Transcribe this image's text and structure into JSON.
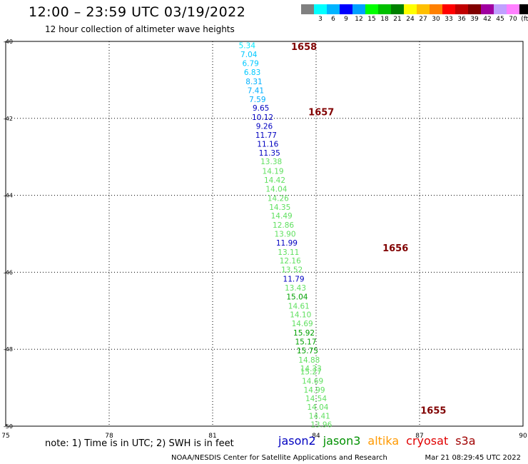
{
  "title": "12:00 – 23:59 UTC 03/19/2022",
  "subtitle": "12 hour collection of altimeter wave heights",
  "legend": {
    "colors": [
      "#808080",
      "#00ffff",
      "#00b4ff",
      "#0000ff",
      "#00a0ff",
      "#00ff00",
      "#00c000",
      "#008000",
      "#ffff00",
      "#ffc000",
      "#ff8000",
      "#ff0000",
      "#c00000",
      "#800000",
      "#a000a0",
      "#c0a0ff",
      "#ff80ff",
      "#000000"
    ],
    "labels": [
      "",
      "3",
      "6",
      "9",
      "12",
      "15",
      "18",
      "21",
      "24",
      "27",
      "30",
      "33",
      "36",
      "39",
      "42",
      "45",
      "70",
      "(ft)"
    ]
  },
  "note": "note:  1) Time is in UTC;  2) SWH is in feet",
  "satellites": [
    {
      "name": "jason2",
      "color": "#0000c0"
    },
    {
      "name": "jason3",
      "color": "#009000"
    },
    {
      "name": "altika",
      "color": "#ff9900"
    },
    {
      "name": "cryosat",
      "color": "#e00000"
    },
    {
      "name": "s3a",
      "color": "#a00000"
    }
  ],
  "footer_left": "NOAA/NESDIS Center for Satellite Applications and Research",
  "footer_right": "Mar 21 08:29:45 UTC 2022",
  "chart_data": {
    "type": "scatter",
    "xlim": [
      75,
      90
    ],
    "ylim": [
      -50,
      -40
    ],
    "x_ticks": [
      75,
      78,
      81,
      84,
      87,
      90
    ],
    "x_tick_labels": [
      "75",
      "78",
      "81",
      "84",
      "87",
      "90"
    ],
    "y_ticks": [
      -40,
      -42,
      -44,
      -46,
      -48,
      -50
    ],
    "y_tick_labels": [
      "-40",
      "-42",
      "-44",
      "-46",
      "-48",
      "-50"
    ],
    "grid": true,
    "time_labels": [
      {
        "text": "1658",
        "x": 83.65,
        "y": -40.15
      },
      {
        "text": "1657",
        "x": 84.15,
        "y": -41.85
      },
      {
        "text": "1656",
        "x": 86.3,
        "y": -45.38
      },
      {
        "text": "1655",
        "x": 87.4,
        "y": -49.6
      }
    ],
    "points": [
      {
        "x": 82.0,
        "y": -40.1,
        "v": "5.34",
        "c": "#00e8ff"
      },
      {
        "x": 82.05,
        "y": -40.33,
        "v": "7.04",
        "c": "#00c8ff"
      },
      {
        "x": 82.1,
        "y": -40.57,
        "v": "6.79",
        "c": "#00c8ff"
      },
      {
        "x": 82.15,
        "y": -40.8,
        "v": "6.83",
        "c": "#00c8ff"
      },
      {
        "x": 82.2,
        "y": -41.04,
        "v": "8.31",
        "c": "#00b0ff"
      },
      {
        "x": 82.25,
        "y": -41.27,
        "v": "7.41",
        "c": "#00b0ff"
      },
      {
        "x": 82.3,
        "y": -41.5,
        "v": "7.59",
        "c": "#00b0ff"
      },
      {
        "x": 82.4,
        "y": -41.73,
        "v": "9.65",
        "c": "#0000c0"
      },
      {
        "x": 82.45,
        "y": -41.97,
        "v": "10.12",
        "c": "#0000c0"
      },
      {
        "x": 82.5,
        "y": -42.2,
        "v": "9.26",
        "c": "#0000c0"
      },
      {
        "x": 82.55,
        "y": -42.43,
        "v": "11.77",
        "c": "#0000c0"
      },
      {
        "x": 82.6,
        "y": -42.66,
        "v": "11.16",
        "c": "#0000c0"
      },
      {
        "x": 82.65,
        "y": -42.89,
        "v": "11.35",
        "c": "#0000c0"
      },
      {
        "x": 82.7,
        "y": -43.12,
        "v": "13.38",
        "c": "#60e060"
      },
      {
        "x": 82.75,
        "y": -43.37,
        "v": "14.19",
        "c": "#60e060"
      },
      {
        "x": 82.8,
        "y": -43.6,
        "v": "14.42",
        "c": "#60e060"
      },
      {
        "x": 82.85,
        "y": -43.83,
        "v": "14.04",
        "c": "#60e060"
      },
      {
        "x": 82.9,
        "y": -44.07,
        "v": "14.26",
        "c": "#60e060"
      },
      {
        "x": 82.95,
        "y": -44.3,
        "v": "14.35",
        "c": "#60e060"
      },
      {
        "x": 83.0,
        "y": -44.53,
        "v": "14.49",
        "c": "#60e060"
      },
      {
        "x": 83.05,
        "y": -44.77,
        "v": "12.86",
        "c": "#60e060"
      },
      {
        "x": 83.1,
        "y": -45.0,
        "v": "13.90",
        "c": "#60e060"
      },
      {
        "x": 83.15,
        "y": -45.23,
        "v": "11.99",
        "c": "#0000c0"
      },
      {
        "x": 83.2,
        "y": -45.47,
        "v": "13.11",
        "c": "#60e060"
      },
      {
        "x": 83.25,
        "y": -45.7,
        "v": "12.16",
        "c": "#60e060"
      },
      {
        "x": 83.3,
        "y": -45.93,
        "v": "13.52",
        "c": "#60e060"
      },
      {
        "x": 83.35,
        "y": -46.17,
        "v": "11.79",
        "c": "#0000c0"
      },
      {
        "x": 83.4,
        "y": -46.4,
        "v": "13.43",
        "c": "#60e060"
      },
      {
        "x": 83.45,
        "y": -46.63,
        "v": "15.04",
        "c": "#00a000"
      },
      {
        "x": 83.5,
        "y": -46.87,
        "v": "14.61",
        "c": "#60e060"
      },
      {
        "x": 83.55,
        "y": -47.1,
        "v": "14.10",
        "c": "#60e060"
      },
      {
        "x": 83.6,
        "y": -47.33,
        "v": "14.69",
        "c": "#60e060"
      },
      {
        "x": 83.65,
        "y": -47.57,
        "v": "15.92",
        "c": "#00a000"
      },
      {
        "x": 83.7,
        "y": -47.8,
        "v": "15.17",
        "c": "#00a000"
      },
      {
        "x": 83.75,
        "y": -48.03,
        "v": "15.75",
        "c": "#00a000"
      },
      {
        "x": 83.8,
        "y": -48.27,
        "v": "14.88",
        "c": "#60e060"
      },
      {
        "x": 83.85,
        "y": -48.5,
        "v": "14.33",
        "c": "#60e060"
      },
      {
        "x": 83.85,
        "y": -48.58,
        "v": "15.27",
        "c": "#60e060"
      },
      {
        "x": 83.9,
        "y": -48.82,
        "v": "14.69",
        "c": "#60e060"
      },
      {
        "x": 83.95,
        "y": -49.05,
        "v": "14.99",
        "c": "#60e060"
      },
      {
        "x": 84.0,
        "y": -49.28,
        "v": "14.54",
        "c": "#60e060"
      },
      {
        "x": 84.05,
        "y": -49.5,
        "v": "14.04",
        "c": "#60e060"
      },
      {
        "x": 84.1,
        "y": -49.73,
        "v": "14.41",
        "c": "#60e060"
      },
      {
        "x": 84.15,
        "y": -49.95,
        "v": "13.96",
        "c": "#60e060"
      }
    ]
  }
}
